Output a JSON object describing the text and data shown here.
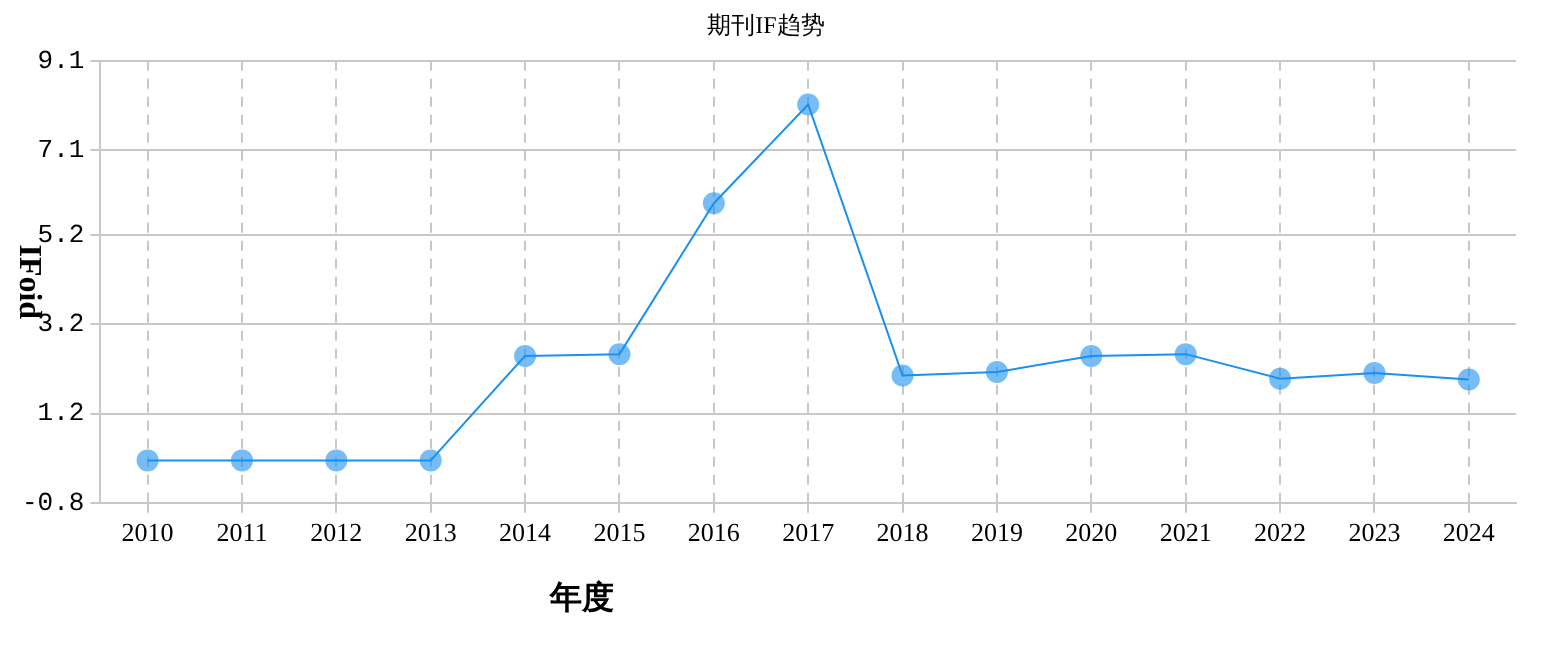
{
  "chart_data": {
    "type": "line",
    "title": "期刊IF趋势",
    "xlabel": "年度",
    "ylabel": "IFoid",
    "categories": [
      "2010",
      "2011",
      "2012",
      "2013",
      "2014",
      "2015",
      "2016",
      "2017",
      "2018",
      "2019",
      "2020",
      "2021",
      "2022",
      "2023",
      "2024"
    ],
    "series": [
      {
        "color": "#1a90f0",
        "values": [
          0.15,
          0.15,
          0.15,
          0.15,
          2.49,
          2.53,
          5.91,
          8.12,
          2.05,
          2.13,
          2.49,
          2.53,
          1.98,
          2.11,
          1.96
        ]
      }
    ],
    "ylim": [
      -0.8,
      9.1
    ],
    "yticks": [
      -0.8,
      1.2,
      3.2,
      5.2,
      7.1,
      9.1
    ],
    "grid": true,
    "marker": "circle",
    "line_style": "solid",
    "legend": false
  }
}
